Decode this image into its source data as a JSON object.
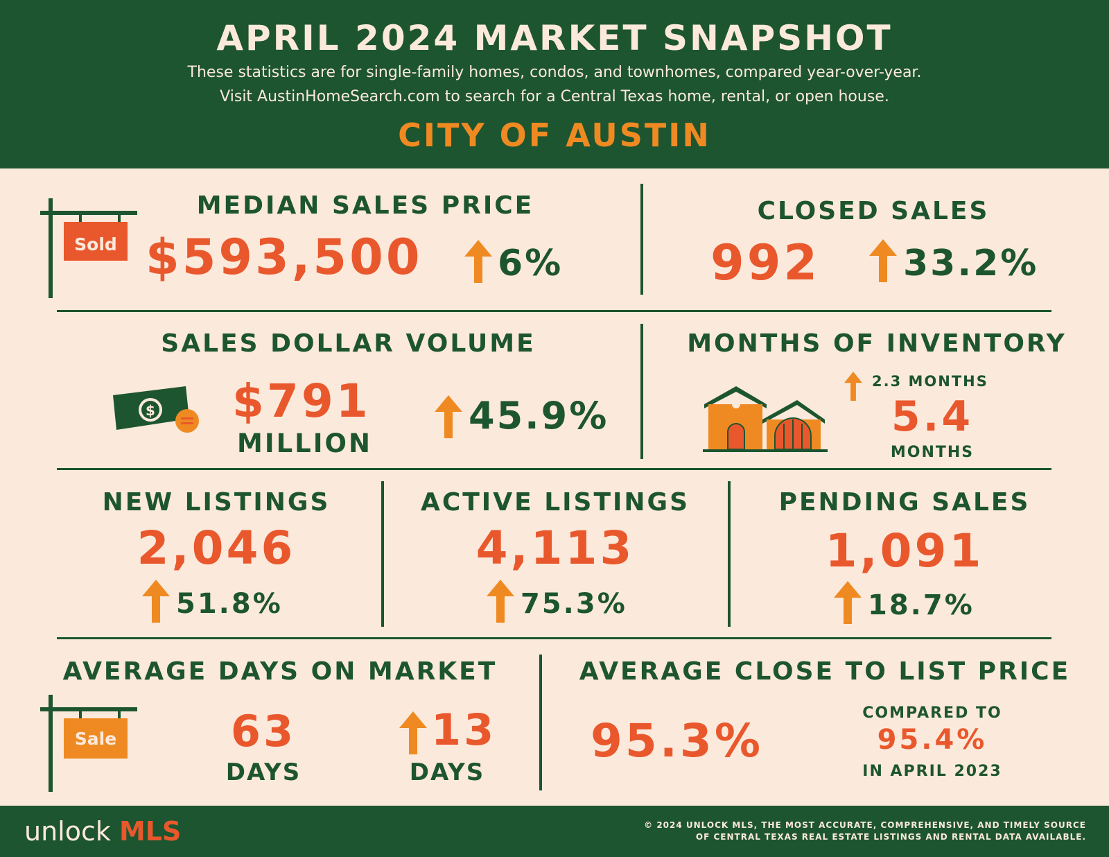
{
  "header": {
    "title": "APRIL 2024 MARKET SNAPSHOT",
    "subtitle_line1": "These statistics are for single-family homes, condos, and townhomes, compared year-over-year.",
    "subtitle_line2": "Visit AustinHomeSearch.com to search for a Central Texas home, rental, or open house.",
    "city": "CITY OF AUSTIN"
  },
  "median_sales_price": {
    "label": "MEDIAN SALES PRICE",
    "value": "$593,500",
    "change": "6%",
    "sign_text": "Sold",
    "icon": "sold-sign-icon",
    "trend_icon": "arrow-up-icon"
  },
  "closed_sales": {
    "label": "CLOSED SALES",
    "value": "992",
    "change": "33.2%",
    "trend_icon": "arrow-up-icon"
  },
  "sales_dollar_volume": {
    "label": "SALES DOLLAR VOLUME",
    "value": "$791",
    "unit": "MILLION",
    "change": "45.9%",
    "icon": "money-icon",
    "trend_icon": "arrow-up-icon"
  },
  "months_of_inventory": {
    "label": "MONTHS OF INVENTORY",
    "change": "2.3 MONTHS",
    "value": "5.4",
    "unit": "MONTHS",
    "icon": "house-icon",
    "trend_icon": "arrow-up-icon"
  },
  "new_listings": {
    "label": "NEW LISTINGS",
    "value": "2,046",
    "change": "51.8%",
    "trend_icon": "arrow-up-icon"
  },
  "active_listings": {
    "label": "ACTIVE LISTINGS",
    "value": "4,113",
    "change": "75.3%",
    "trend_icon": "arrow-up-icon"
  },
  "pending_sales": {
    "label": "PENDING SALES",
    "value": "1,091",
    "change": "18.7%",
    "trend_icon": "arrow-up-icon"
  },
  "avg_days_on_market": {
    "label": "AVERAGE DAYS ON MARKET",
    "value": "63",
    "unit": "DAYS",
    "change": "13",
    "change_unit": "DAYS",
    "sign_text": "Sale",
    "icon": "sale-sign-icon",
    "trend_icon": "arrow-up-icon"
  },
  "avg_close_to_list": {
    "label": "AVERAGE CLOSE TO LIST PRICE",
    "value": "95.3%",
    "compare_label": "COMPARED TO",
    "compare_value": "95.4%",
    "compare_period": "IN APRIL 2023"
  },
  "footer": {
    "logo_text": "unlock",
    "logo_accent": "MLS",
    "note_line1": "© 2024 UNLOCK MLS, THE MOST ACCURATE, COMPREHENSIVE, AND TIMELY SOURCE",
    "note_line2": "OF CENTRAL TEXAS REAL ESTATE LISTINGS AND RENTAL DATA AVAILABLE."
  },
  "colors": {
    "green": "#1d5530",
    "cream": "#fbe9dc",
    "orange": "#ef8a22",
    "red_orange": "#e9582c"
  }
}
